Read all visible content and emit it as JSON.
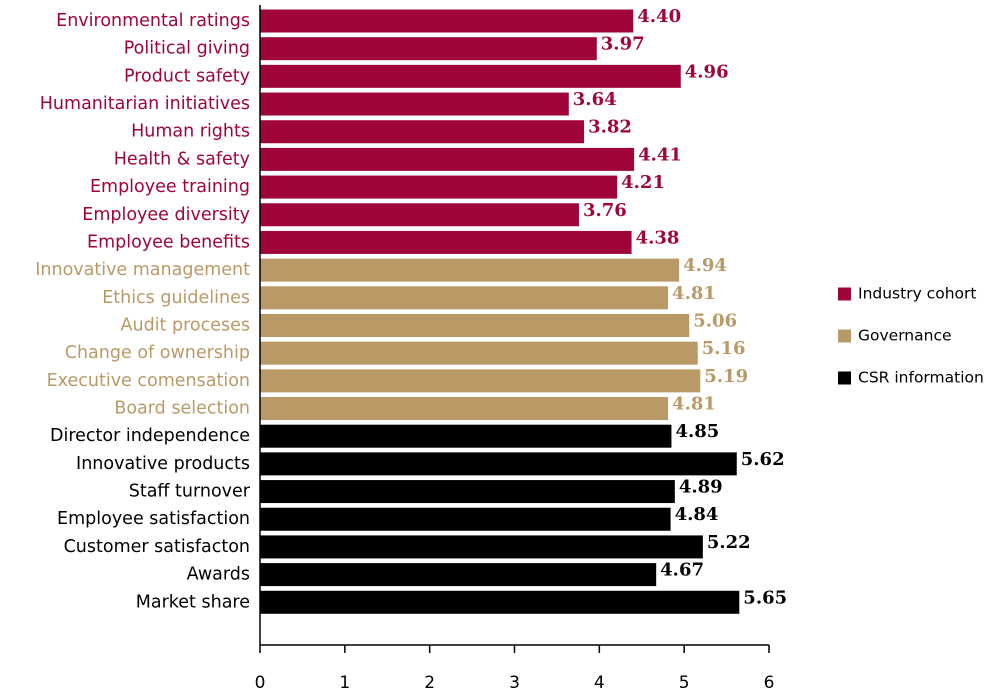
{
  "chart_data": {
    "type": "barh",
    "series": [
      {
        "name": "Industry cohort",
        "color": "#a0053a",
        "categories": [
          "Environmental ratings",
          "Political giving",
          "Product safety",
          "Humanitarian initiatives",
          "Human rights",
          "Health & safety",
          "Employee training",
          "Employee diversity",
          "Employee benefits"
        ],
        "values": [
          4.4,
          3.97,
          4.96,
          3.64,
          3.82,
          4.41,
          4.21,
          3.76,
          4.38
        ],
        "value_labels": [
          "4.40",
          "3.97",
          "4.96",
          "3.64",
          "3.82",
          "4.41",
          "4.21",
          "3.76",
          "4.38"
        ]
      },
      {
        "name": "Governance",
        "color": "#b99a67",
        "categories": [
          "Innovative management",
          "Ethics guidelines",
          "Audit proceses",
          "Change of ownership",
          "Executive comensation",
          "Board selection"
        ],
        "values": [
          4.94,
          4.81,
          5.06,
          5.16,
          5.19,
          4.81
        ],
        "value_labels": [
          "4.94",
          "4.81",
          "5.06",
          "5.16",
          "5.19",
          "4.81"
        ]
      },
      {
        "name": "CSR information",
        "color": "#000000",
        "categories": [
          "Director independence",
          "Innovative products",
          "Staff turnover",
          "Employee satisfaction",
          "Customer satisfacton",
          "Awards",
          "Market share"
        ],
        "values": [
          4.85,
          5.62,
          4.89,
          4.84,
          5.22,
          4.67,
          5.65
        ],
        "value_labels": [
          "4.85",
          "5.62",
          "4.89",
          "4.84",
          "5.22",
          "4.67",
          "5.65"
        ]
      }
    ],
    "xlim": [
      0,
      6
    ],
    "xticks": [
      0,
      1,
      2,
      3,
      4,
      5,
      6
    ],
    "legend": "right"
  }
}
